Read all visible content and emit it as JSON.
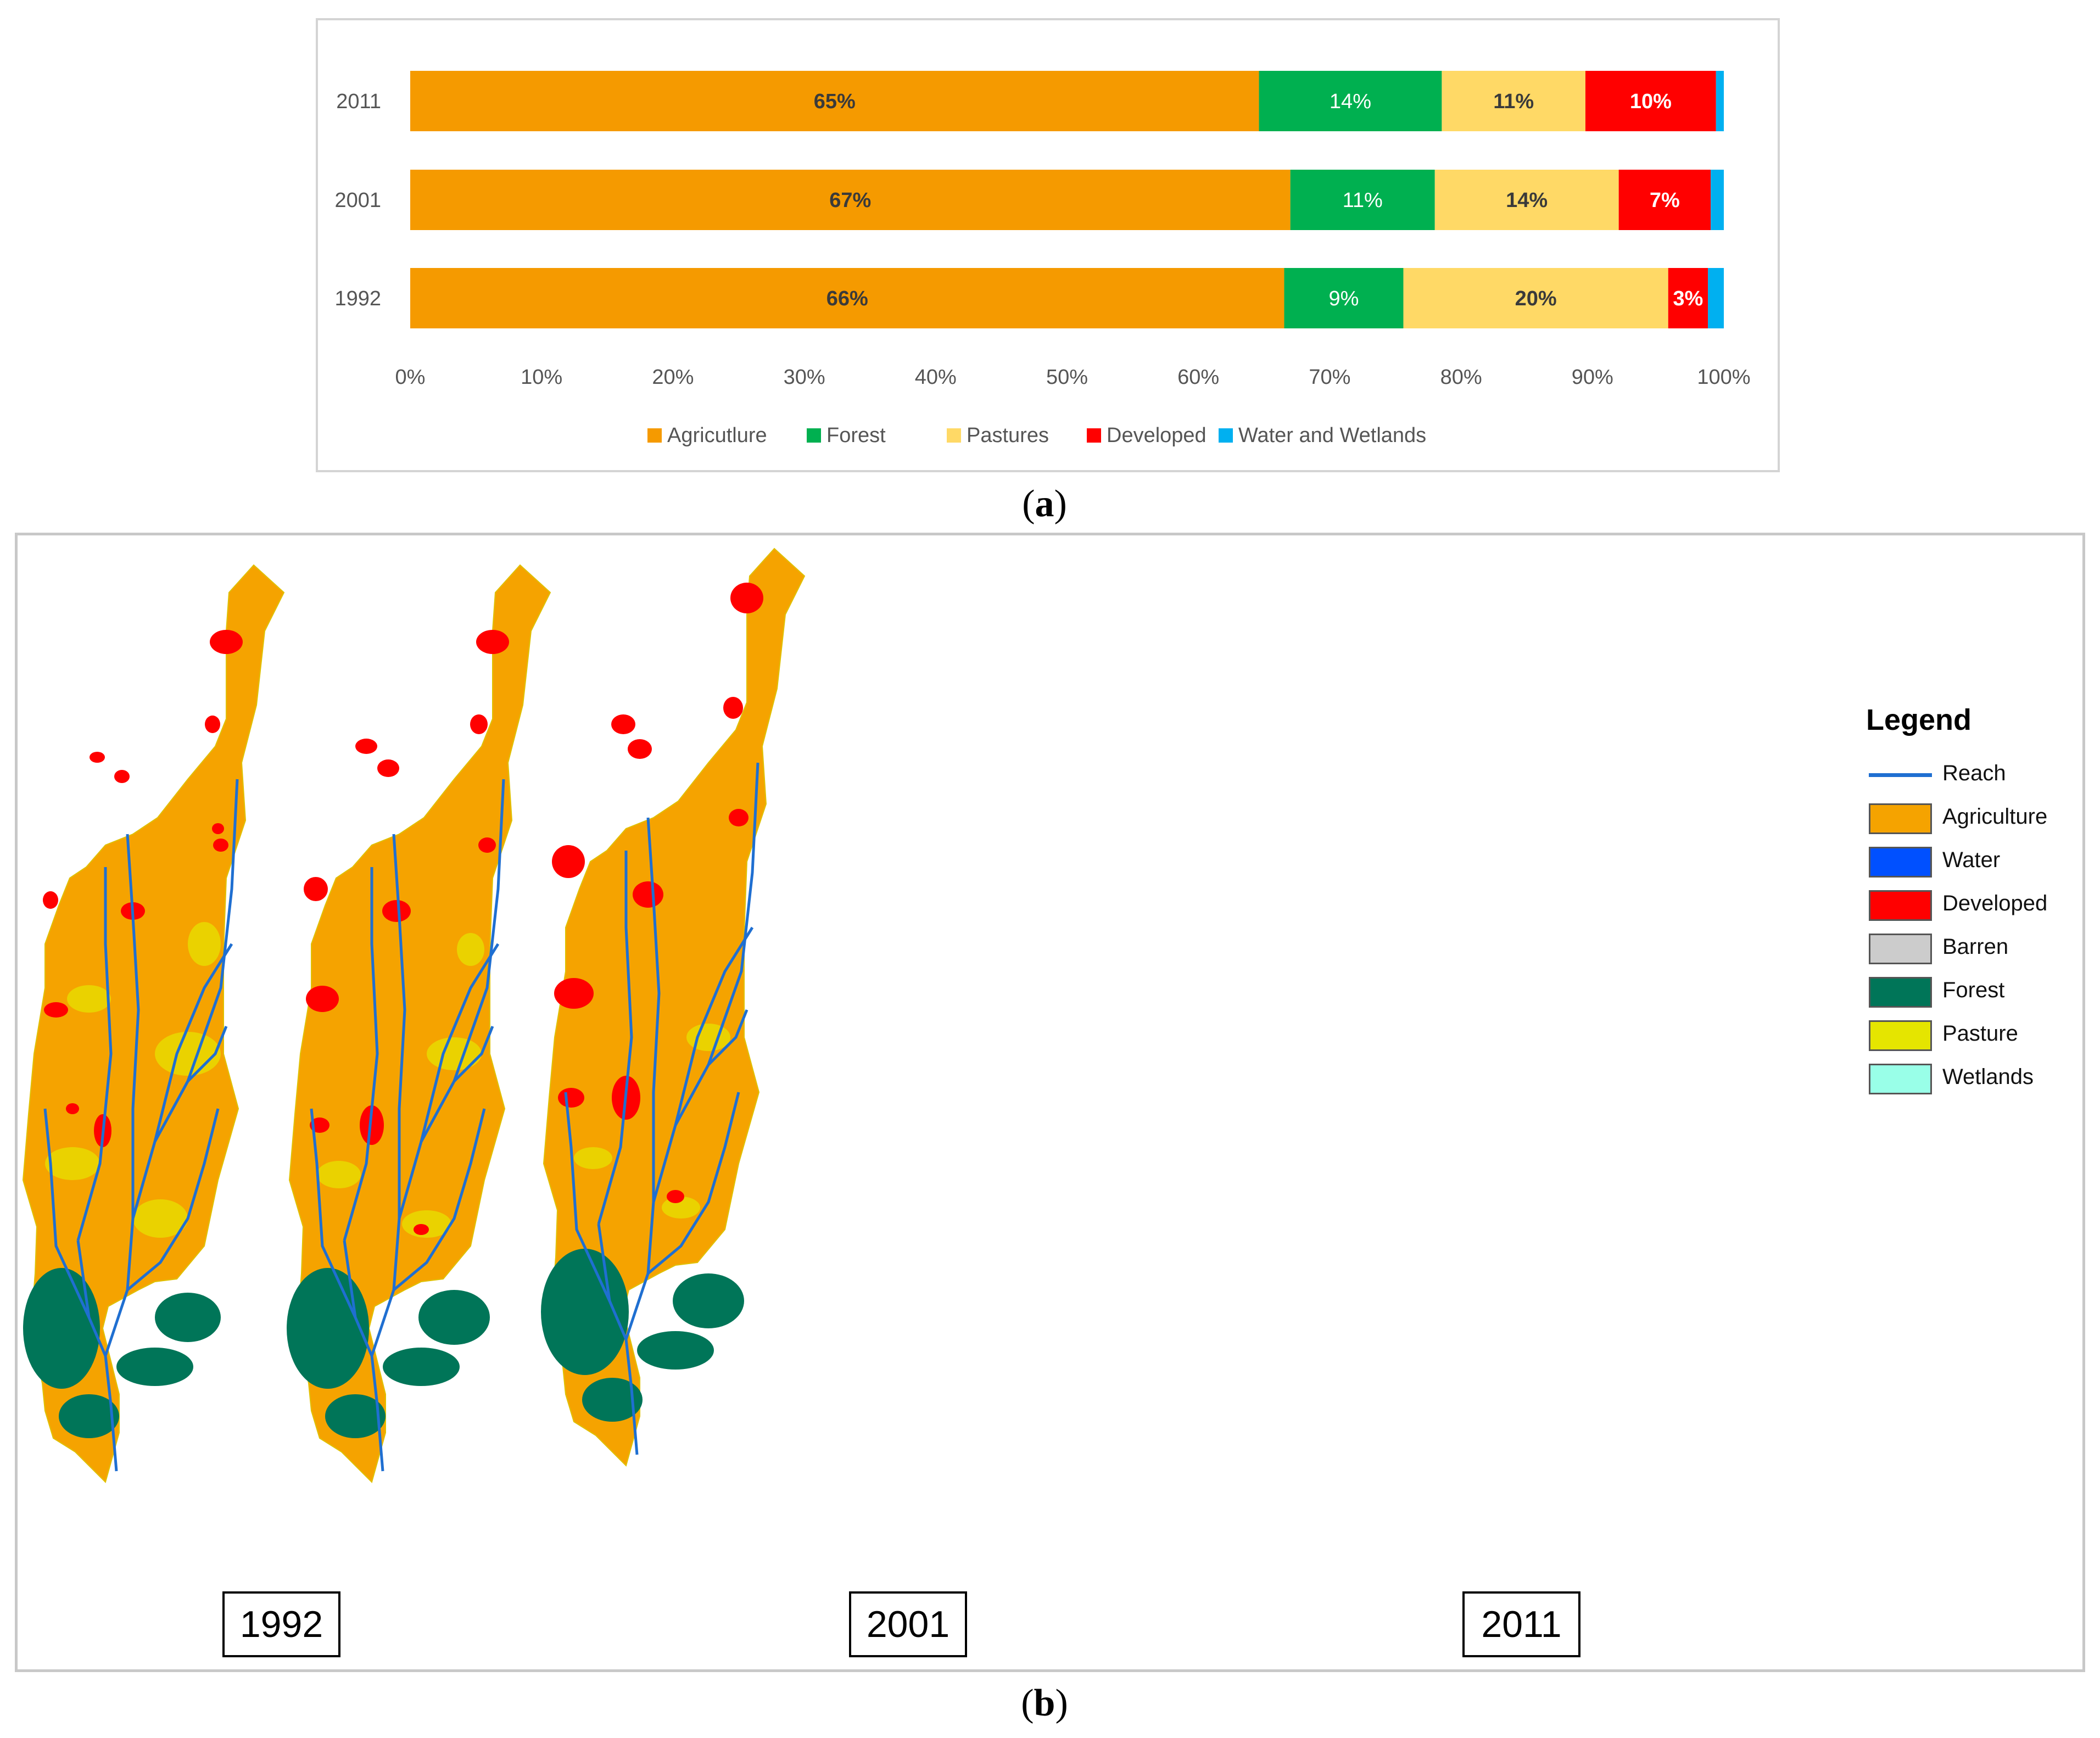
{
  "chart_data": {
    "type": "bar",
    "orientation": "horizontal",
    "stacked": "percent",
    "categories": [
      "2011",
      "2001",
      "1992"
    ],
    "series": [
      {
        "name": "Agricutlure",
        "color": "#f59a00",
        "values": [
          65,
          67,
          66
        ],
        "labels": [
          "65%",
          "67%",
          "66%"
        ],
        "label_color": "#3a3a3a",
        "label_bold": true
      },
      {
        "name": "Forest",
        "color": "#00b050",
        "values": [
          14,
          11,
          9
        ],
        "labels": [
          "14%",
          "11%",
          "9%"
        ],
        "label_color": "#ffffff",
        "label_bold": false
      },
      {
        "name": "Pastures",
        "color": "#ffd966",
        "values": [
          11,
          14,
          20
        ],
        "labels": [
          "11%",
          "14%",
          "20%"
        ],
        "label_color": "#3a3a3a",
        "label_bold": true
      },
      {
        "name": "Developed",
        "color": "#ff0000",
        "values": [
          10,
          7,
          3
        ],
        "labels": [
          "10%",
          "7%",
          "3%"
        ],
        "label_color": "#ffffff",
        "label_bold": true
      },
      {
        "name": "Water and Wetlands",
        "color": "#00b0f0",
        "values": [
          0.6,
          1,
          1.2
        ],
        "labels": [
          "",
          "",
          ""
        ],
        "label_color": "#ffffff",
        "label_bold": false
      }
    ],
    "xlim": [
      0,
      100
    ],
    "xticks": [
      "0%",
      "10%",
      "20%",
      "30%",
      "40%",
      "50%",
      "60%",
      "70%",
      "80%",
      "90%",
      "100%"
    ],
    "grid": false,
    "legend_position": "bottom"
  },
  "captions": {
    "a": "a",
    "b": "b"
  },
  "maps": {
    "years": [
      "1992",
      "2001",
      "2011"
    ],
    "colors": {
      "agriculture": "#f5a300",
      "water": "#0050ff",
      "developed": "#ff0000",
      "barren": "#cccccc",
      "forest": "#007558",
      "pasture": "#e5e500",
      "wetlands": "#99ffe8",
      "reach": "#1f6fd1"
    },
    "legend": {
      "title": "Legend",
      "items": [
        {
          "label": "Reach",
          "kind": "line",
          "color": "#1f6fd1"
        },
        {
          "label": "Agriculture",
          "kind": "box",
          "color": "#f5a300"
        },
        {
          "label": "Water",
          "kind": "box",
          "color": "#0050ff"
        },
        {
          "label": "Developed",
          "kind": "box",
          "color": "#ff0000"
        },
        {
          "label": "Barren",
          "kind": "box",
          "color": "#cccccc"
        },
        {
          "label": "Forest",
          "kind": "box",
          "color": "#007558"
        },
        {
          "label": "Pasture",
          "kind": "box",
          "color": "#e5e500"
        },
        {
          "label": "Wetlands",
          "kind": "box",
          "color": "#99ffe8"
        }
      ]
    }
  }
}
